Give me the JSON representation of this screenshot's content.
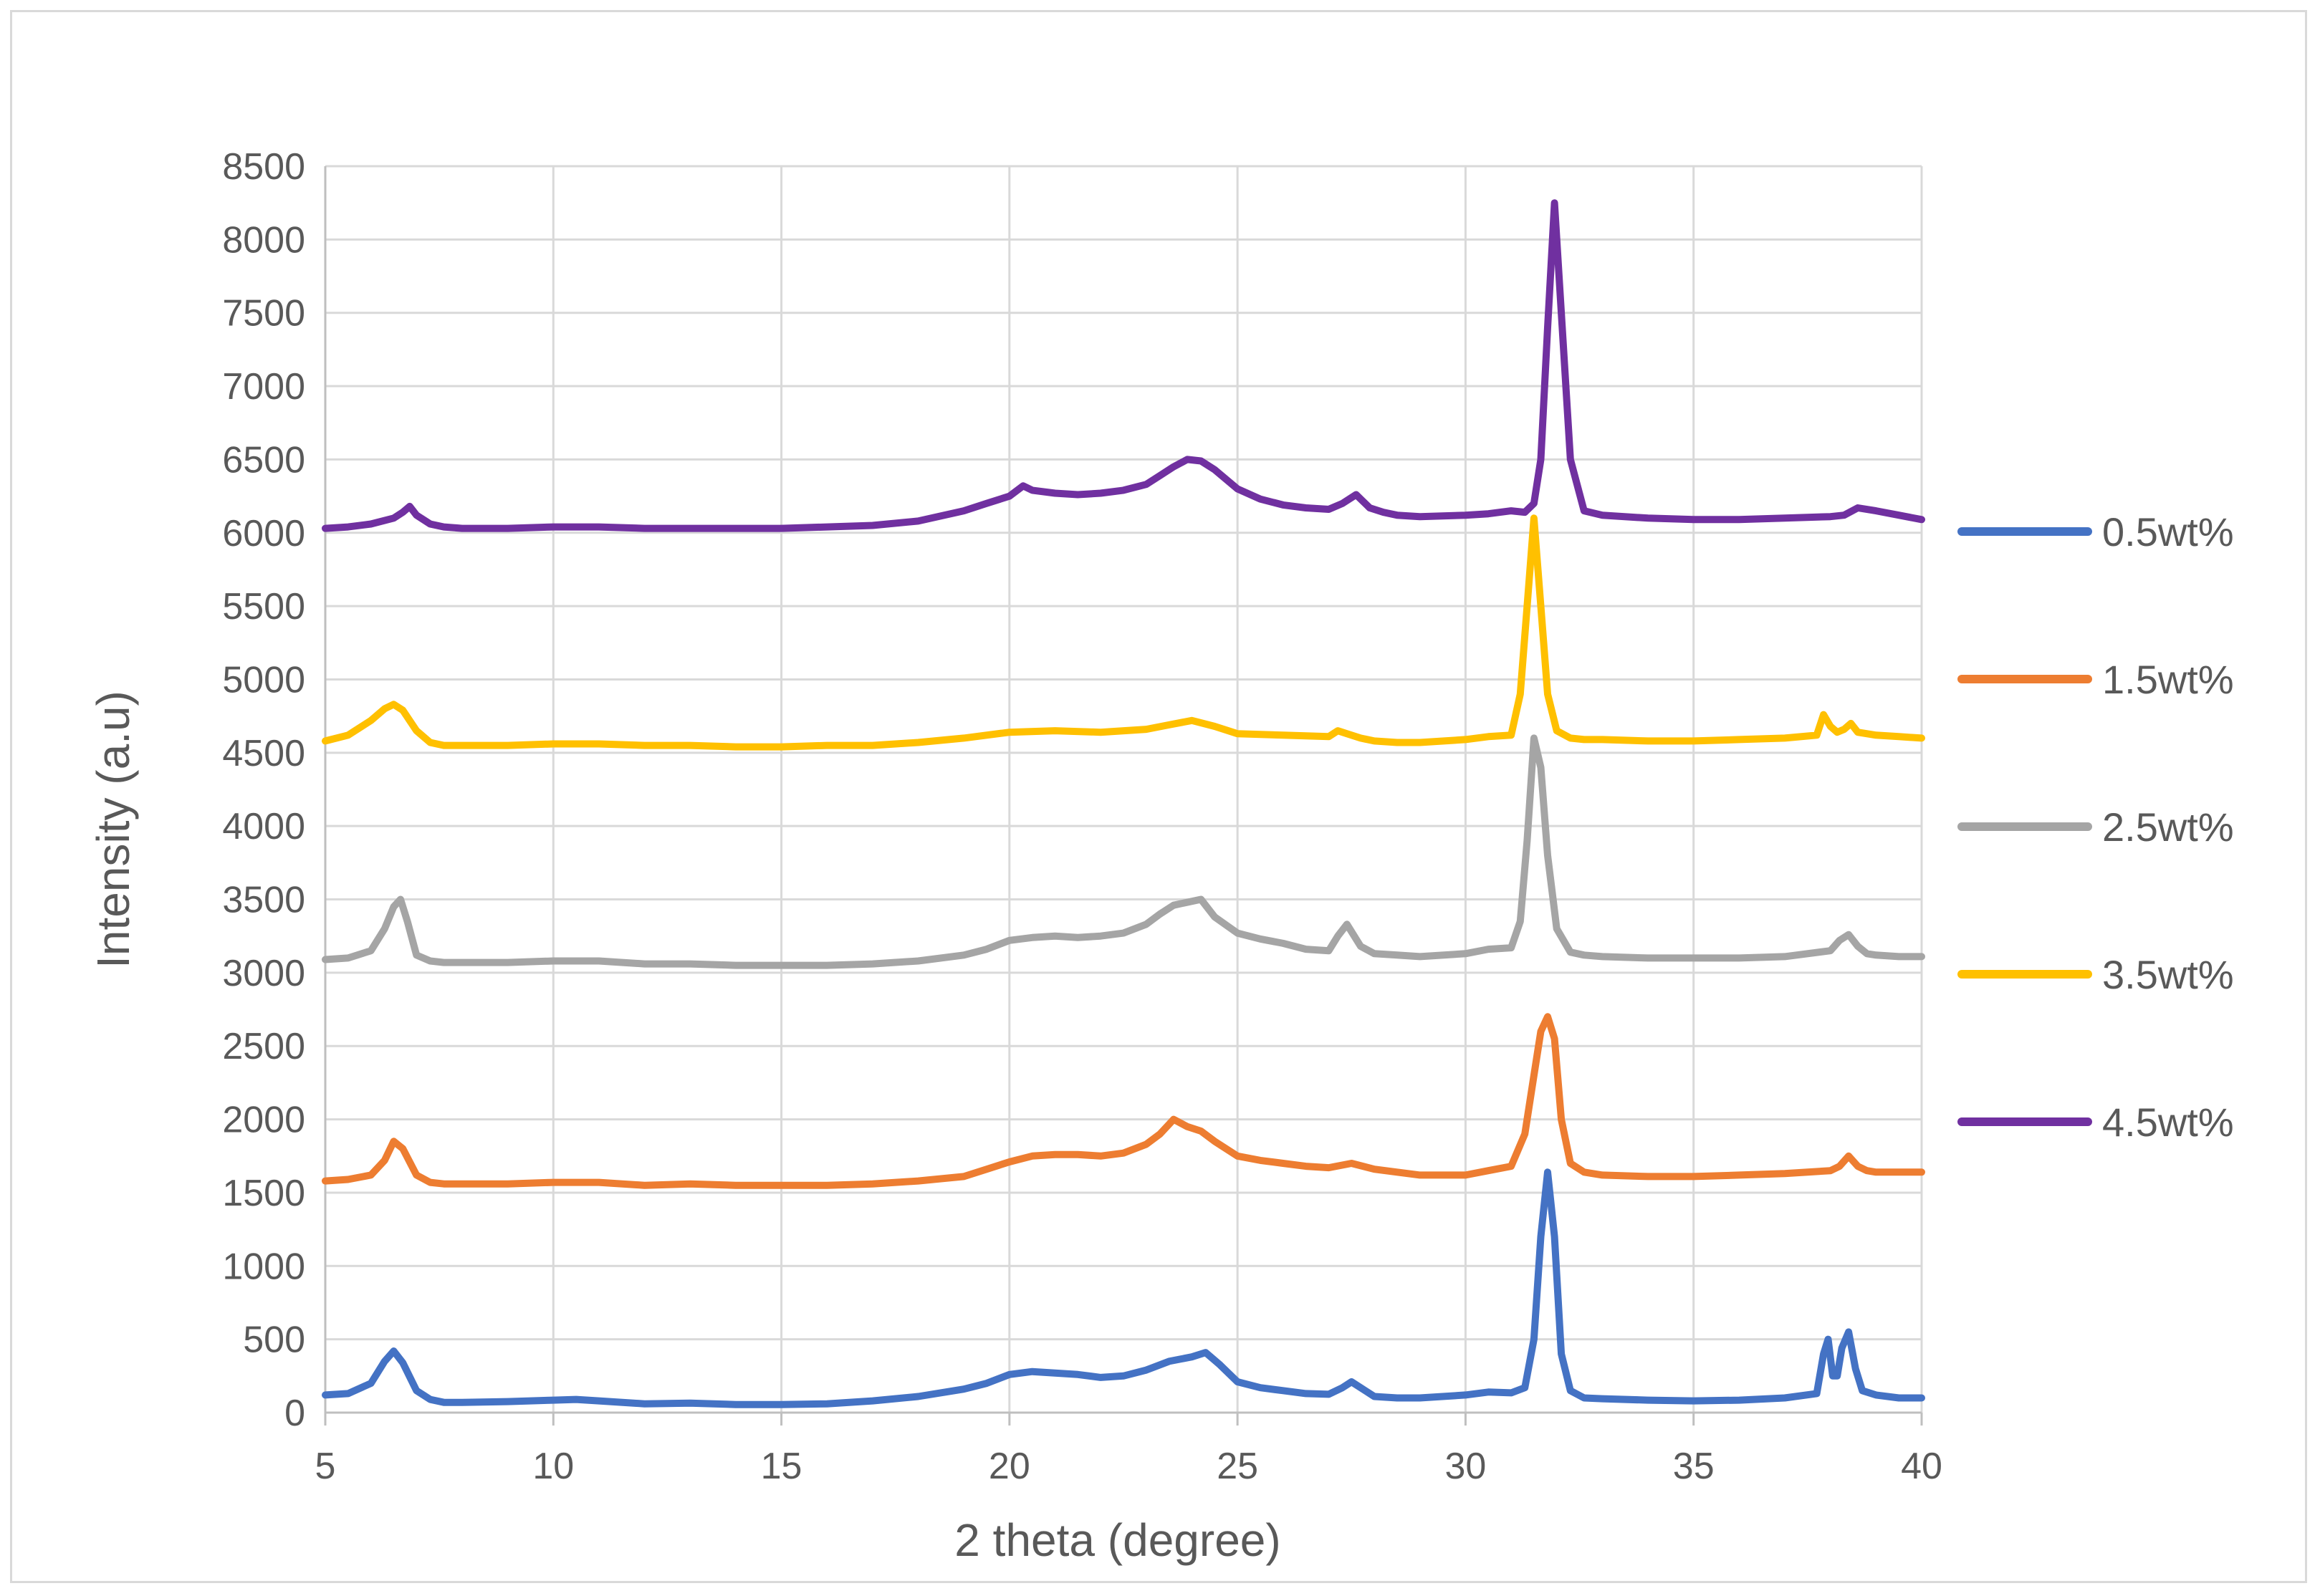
{
  "chart_data": {
    "type": "line",
    "title": "",
    "xlabel": "2 theta (degree)",
    "ylabel": "Intensity (a.u)",
    "xlim": [
      5,
      40
    ],
    "ylim": [
      0,
      8500
    ],
    "grid": true,
    "legend_position": "right",
    "x_ticks": [
      "5",
      "10",
      "15",
      "20",
      "25",
      "30",
      "35",
      "40"
    ],
    "y_ticks": [
      "0",
      "500",
      "1000",
      "1500",
      "2000",
      "2500",
      "3000",
      "3500",
      "4000",
      "4500",
      "5000",
      "5500",
      "6000",
      "6500",
      "7000",
      "7500",
      "8000",
      "8500"
    ],
    "series": [
      {
        "name": "0.5wt%",
        "color": "#4472c4",
        "x": [
          5,
          5.5,
          6,
          6.3,
          6.5,
          6.7,
          7,
          7.3,
          7.6,
          8,
          9,
          10,
          10.5,
          11,
          12,
          13,
          14,
          15,
          16,
          17,
          18,
          19,
          19.5,
          20,
          20.5,
          21,
          21.5,
          22,
          22.5,
          23,
          23.5,
          24,
          24.3,
          24.6,
          25,
          25.5,
          26,
          26.5,
          27,
          27.3,
          27.5,
          27.8,
          28,
          28.5,
          29,
          30,
          30.5,
          31,
          31.3,
          31.5,
          31.65,
          31.8,
          31.95,
          32.1,
          32.3,
          32.6,
          33,
          34,
          35,
          36,
          37,
          37.7,
          37.85,
          37.95,
          38.05,
          38.15,
          38.25,
          38.4,
          38.55,
          38.7,
          39,
          39.5,
          40
        ],
        "y": [
          120,
          130,
          200,
          350,
          420,
          340,
          150,
          90,
          70,
          70,
          75,
          85,
          90,
          80,
          60,
          65,
          55,
          55,
          60,
          80,
          110,
          160,
          200,
          260,
          280,
          270,
          260,
          240,
          250,
          290,
          350,
          380,
          410,
          330,
          210,
          170,
          150,
          130,
          125,
          170,
          210,
          150,
          110,
          100,
          100,
          120,
          140,
          135,
          170,
          500,
          1200,
          1640,
          1200,
          400,
          150,
          100,
          95,
          85,
          80,
          85,
          100,
          130,
          400,
          500,
          250,
          250,
          440,
          550,
          300,
          150,
          120,
          100,
          100
        ]
      },
      {
        "name": "1.5wt%",
        "color": "#ed7d31",
        "x": [
          5,
          5.5,
          6,
          6.3,
          6.5,
          6.7,
          7,
          7.3,
          7.6,
          8,
          9,
          10,
          11,
          12,
          13,
          14,
          15,
          16,
          17,
          18,
          19,
          19.5,
          20,
          20.5,
          21,
          21.5,
          22,
          22.5,
          23,
          23.3,
          23.6,
          23.9,
          24.2,
          24.5,
          25,
          25.5,
          26,
          26.5,
          27,
          27.5,
          28,
          28.5,
          29,
          30,
          30.5,
          31,
          31.3,
          31.5,
          31.65,
          31.8,
          31.95,
          32.1,
          32.3,
          32.6,
          33,
          34,
          35,
          36,
          37,
          38,
          38.2,
          38.4,
          38.6,
          38.8,
          39,
          39.5,
          40
        ],
        "y": [
          1580,
          1590,
          1620,
          1720,
          1850,
          1800,
          1620,
          1570,
          1560,
          1560,
          1560,
          1570,
          1570,
          1550,
          1560,
          1550,
          1550,
          1550,
          1560,
          1580,
          1610,
          1660,
          1710,
          1750,
          1760,
          1760,
          1750,
          1770,
          1830,
          1900,
          2000,
          1950,
          1920,
          1850,
          1750,
          1720,
          1700,
          1680,
          1670,
          1700,
          1660,
          1640,
          1620,
          1620,
          1650,
          1680,
          1900,
          2300,
          2600,
          2700,
          2550,
          2000,
          1700,
          1640,
          1620,
          1610,
          1610,
          1620,
          1630,
          1650,
          1680,
          1750,
          1680,
          1650,
          1640,
          1640,
          1640
        ]
      },
      {
        "name": "2.5wt%",
        "color": "#a5a5a5",
        "x": [
          5,
          5.5,
          6,
          6.3,
          6.5,
          6.65,
          6.8,
          7,
          7.3,
          7.6,
          8,
          9,
          10,
          11,
          12,
          13,
          14,
          15,
          16,
          17,
          18,
          19,
          19.5,
          20,
          20.5,
          21,
          21.5,
          22,
          22.5,
          23,
          23.3,
          23.6,
          23.9,
          24.2,
          24.5,
          25,
          25.5,
          26,
          26.5,
          27,
          27.2,
          27.4,
          27.7,
          28,
          28.5,
          29,
          30,
          30.5,
          31,
          31.2,
          31.35,
          31.5,
          31.65,
          31.8,
          32,
          32.3,
          32.6,
          33,
          34,
          35,
          36,
          37,
          38,
          38.2,
          38.4,
          38.6,
          38.8,
          39,
          39.5,
          40
        ],
        "y": [
          3090,
          3100,
          3150,
          3300,
          3450,
          3500,
          3350,
          3120,
          3080,
          3070,
          3070,
          3070,
          3080,
          3080,
          3060,
          3060,
          3050,
          3050,
          3050,
          3060,
          3080,
          3120,
          3160,
          3220,
          3240,
          3250,
          3240,
          3250,
          3270,
          3330,
          3400,
          3460,
          3480,
          3500,
          3380,
          3270,
          3230,
          3200,
          3160,
          3150,
          3250,
          3330,
          3180,
          3130,
          3120,
          3110,
          3130,
          3160,
          3170,
          3350,
          3900,
          4600,
          4400,
          3800,
          3300,
          3140,
          3120,
          3110,
          3100,
          3100,
          3100,
          3110,
          3150,
          3220,
          3260,
          3180,
          3130,
          3120,
          3110,
          3110
        ]
      },
      {
        "name": "3.5wt%",
        "color": "#ffc000",
        "x": [
          5,
          5.5,
          6,
          6.3,
          6.5,
          6.7,
          7,
          7.3,
          7.6,
          8,
          9,
          10,
          11,
          12,
          13,
          14,
          15,
          16,
          17,
          18,
          19,
          20,
          21,
          22,
          23,
          23.5,
          24,
          24.5,
          25,
          26,
          27,
          27.2,
          27.4,
          27.7,
          28,
          28.5,
          29,
          30,
          30.5,
          31,
          31.2,
          31.35,
          31.5,
          31.65,
          31.8,
          32,
          32.3,
          32.6,
          33,
          34,
          35,
          36,
          37,
          37.7,
          37.85,
          38,
          38.15,
          38.3,
          38.45,
          38.6,
          39,
          39.5,
          40
        ],
        "y": [
          4580,
          4620,
          4720,
          4800,
          4830,
          4790,
          4650,
          4570,
          4550,
          4550,
          4550,
          4560,
          4560,
          4550,
          4550,
          4540,
          4540,
          4550,
          4550,
          4570,
          4600,
          4640,
          4650,
          4640,
          4660,
          4690,
          4720,
          4680,
          4630,
          4620,
          4610,
          4650,
          4630,
          4600,
          4580,
          4570,
          4570,
          4590,
          4610,
          4620,
          4900,
          5500,
          6100,
          5500,
          4900,
          4650,
          4600,
          4590,
          4590,
          4580,
          4580,
          4590,
          4600,
          4620,
          4760,
          4680,
          4640,
          4660,
          4700,
          4640,
          4620,
          4610,
          4600
        ]
      },
      {
        "name": "4.5wt%",
        "color": "#7030a0",
        "x": [
          5,
          5.5,
          6,
          6.5,
          6.7,
          6.85,
          7,
          7.3,
          7.6,
          8,
          9,
          10,
          11,
          12,
          13,
          14,
          15,
          16,
          17,
          18,
          19,
          19.5,
          20,
          20.3,
          20.5,
          21,
          21.5,
          22,
          22.5,
          23,
          23.3,
          23.6,
          23.9,
          24.2,
          24.5,
          25,
          25.5,
          26,
          26.5,
          27,
          27.3,
          27.6,
          27.9,
          28.2,
          28.5,
          29,
          30,
          30.5,
          31,
          31.3,
          31.5,
          31.65,
          31.8,
          31.95,
          32.1,
          32.3,
          32.6,
          33,
          34,
          35,
          36,
          37,
          38,
          38.3,
          38.6,
          39,
          39.5,
          40
        ],
        "y": [
          6030,
          6040,
          6060,
          6100,
          6140,
          6180,
          6120,
          6060,
          6040,
          6030,
          6030,
          6040,
          6040,
          6030,
          6030,
          6030,
          6030,
          6040,
          6050,
          6080,
          6150,
          6200,
          6250,
          6320,
          6290,
          6270,
          6260,
          6270,
          6290,
          6330,
          6390,
          6450,
          6500,
          6490,
          6430,
          6300,
          6230,
          6190,
          6170,
          6160,
          6200,
          6260,
          6170,
          6140,
          6120,
          6110,
          6120,
          6130,
          6150,
          6140,
          6200,
          6500,
          7400,
          8250,
          7500,
          6500,
          6150,
          6120,
          6100,
          6090,
          6090,
          6100,
          6110,
          6120,
          6170,
          6150,
          6120,
          6090
        ]
      }
    ]
  }
}
